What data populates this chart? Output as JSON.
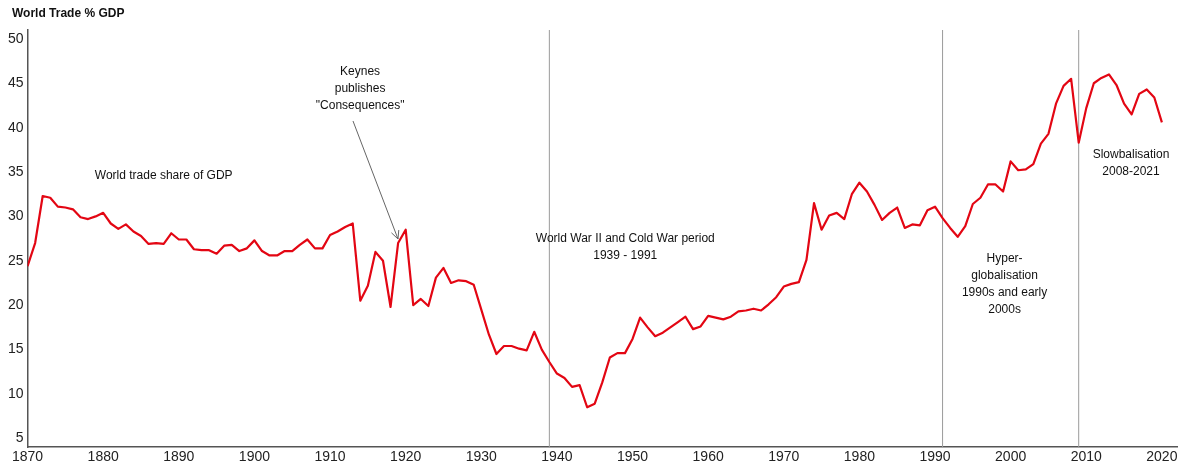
{
  "chart_data": {
    "type": "line",
    "ylabel": "World Trade % GDP",
    "x": [
      1870,
      1871,
      1872,
      1873,
      1874,
      1875,
      1876,
      1877,
      1878,
      1879,
      1880,
      1881,
      1882,
      1883,
      1884,
      1885,
      1886,
      1887,
      1888,
      1889,
      1890,
      1891,
      1892,
      1893,
      1894,
      1895,
      1896,
      1897,
      1898,
      1899,
      1900,
      1901,
      1902,
      1903,
      1904,
      1905,
      1906,
      1907,
      1908,
      1909,
      1910,
      1911,
      1912,
      1913,
      1914,
      1915,
      1916,
      1917,
      1918,
      1919,
      1920,
      1921,
      1922,
      1923,
      1924,
      1925,
      1926,
      1927,
      1928,
      1929,
      1930,
      1931,
      1932,
      1933,
      1934,
      1935,
      1936,
      1937,
      1938,
      1939,
      1940,
      1941,
      1942,
      1943,
      1944,
      1945,
      1946,
      1947,
      1948,
      1949,
      1950,
      1951,
      1952,
      1953,
      1954,
      1955,
      1956,
      1957,
      1958,
      1959,
      1960,
      1961,
      1962,
      1963,
      1964,
      1965,
      1966,
      1967,
      1968,
      1969,
      1970,
      1971,
      1972,
      1973,
      1974,
      1975,
      1976,
      1977,
      1978,
      1979,
      1980,
      1981,
      1982,
      1983,
      1984,
      1985,
      1986,
      1987,
      1988,
      1989,
      1990,
      1991,
      1992,
      1993,
      1994,
      1995,
      1996,
      1997,
      1998,
      1999,
      2000,
      2001,
      2002,
      2003,
      2004,
      2005,
      2006,
      2007,
      2008,
      2009,
      2010,
      2011,
      2012,
      2013,
      2014,
      2015,
      2016,
      2017,
      2018,
      2019,
      2020
    ],
    "series": [
      {
        "name": "World trade share of GDP",
        "color": "#e30613",
        "values": [
          24.4,
          27.0,
          32.3,
          32.1,
          31.1,
          31.0,
          30.8,
          29.9,
          29.7,
          30.0,
          30.4,
          29.2,
          28.6,
          29.1,
          28.3,
          27.8,
          26.9,
          27.0,
          26.9,
          28.1,
          27.4,
          27.4,
          26.3,
          26.2,
          26.2,
          25.8,
          26.7,
          26.8,
          26.1,
          26.4,
          27.3,
          26.1,
          25.6,
          25.6,
          26.1,
          26.1,
          26.8,
          27.4,
          26.4,
          26.4,
          27.9,
          28.3,
          28.8,
          29.2,
          20.5,
          22.2,
          26.0,
          25.0,
          19.8,
          27.0,
          28.5,
          20.0,
          20.7,
          19.9,
          23.1,
          24.2,
          22.5,
          22.8,
          22.7,
          22.3,
          19.5,
          16.7,
          14.5,
          15.4,
          15.4,
          15.1,
          14.9,
          17.0,
          15.0,
          13.6,
          12.3,
          11.8,
          10.8,
          11.0,
          8.5,
          8.9,
          11.3,
          14.1,
          14.6,
          14.6,
          16.2,
          18.6,
          17.5,
          16.5,
          16.9,
          17.5,
          18.1,
          18.7,
          17.3,
          17.6,
          18.8,
          18.6,
          18.4,
          18.7,
          19.3,
          19.4,
          19.6,
          19.4,
          20.1,
          20.9,
          22.1,
          22.4,
          22.6,
          25.1,
          31.5,
          28.5,
          30.1,
          30.4,
          29.7,
          32.5,
          33.8,
          32.8,
          31.3,
          29.6,
          30.4,
          31.0,
          28.7,
          29.1,
          29.0,
          30.7,
          31.1,
          29.8,
          28.7,
          27.7,
          28.9,
          31.4,
          32.1,
          33.6,
          33.6,
          32.8,
          36.2,
          35.2,
          35.3,
          35.9,
          38.2,
          39.3,
          42.7,
          44.7,
          45.5,
          38.3,
          42.2,
          45.0,
          45.6,
          46.0,
          44.8,
          42.7,
          41.5,
          43.8,
          44.3,
          43.4,
          40.6
        ]
      }
    ],
    "xlim": [
      1870,
      2022
    ],
    "xticks": [
      1870,
      1880,
      1890,
      1900,
      1910,
      1920,
      1930,
      1940,
      1950,
      1960,
      1970,
      1980,
      1990,
      2000,
      2010,
      2020
    ],
    "ylim": [
      4,
      51
    ],
    "yticks": [
      5,
      10,
      15,
      20,
      25,
      30,
      35,
      40,
      45,
      50
    ],
    "grid": false,
    "legend": false,
    "marker": "none",
    "line_style": "solid",
    "ref_lines": [
      {
        "axis": "x",
        "value": 1939,
        "label": null,
        "color": "#9a9a9a"
      },
      {
        "axis": "x",
        "value": 1991,
        "label": null,
        "color": "#9a9a9a"
      },
      {
        "axis": "x",
        "value": 2009,
        "label": null,
        "color": "#9a9a9a"
      }
    ],
    "annotations": [
      {
        "text": "Keynes\npublishes\n\"Consequences\"",
        "x": 1919,
        "y": 27.5
      },
      "World War II and Cold War period\n1939 - 1991",
      "Hyper-\nglobalisation\n1990s and early\n2000s",
      "Slowbalisation\n2008-2021"
    ]
  }
}
